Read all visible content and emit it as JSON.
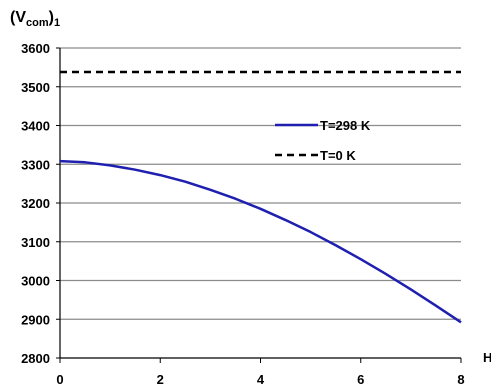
{
  "chart_data": {
    "type": "line",
    "ylabel": {
      "main": "(V",
      "sub": "com",
      "close": ")",
      "index": "1"
    },
    "xlabel": "H",
    "xlim": [
      0,
      8
    ],
    "ylim": [
      2800,
      3600
    ],
    "x_ticks": [
      0,
      2,
      4,
      6,
      8
    ],
    "y_ticks": [
      2800,
      2900,
      3000,
      3100,
      3200,
      3300,
      3400,
      3500,
      3600
    ],
    "grid": true,
    "legend_position": "center-right",
    "series": [
      {
        "name": "T=298 K",
        "style": "solid",
        "color": "#1f1fb0",
        "x": [
          0,
          0.5,
          1,
          1.5,
          2,
          2.5,
          3,
          3.5,
          4,
          4.5,
          5,
          5.5,
          6,
          6.5,
          7,
          7.5,
          8
        ],
        "y": [
          3308,
          3305,
          3297,
          3286,
          3272,
          3255,
          3234,
          3211,
          3185,
          3156,
          3125,
          3091,
          3055,
          3017,
          2977,
          2935,
          2892
        ]
      },
      {
        "name": "T=0 K",
        "style": "dashed",
        "color": "#000000",
        "x": [
          0,
          8
        ],
        "y": [
          3538,
          3538
        ]
      }
    ]
  }
}
